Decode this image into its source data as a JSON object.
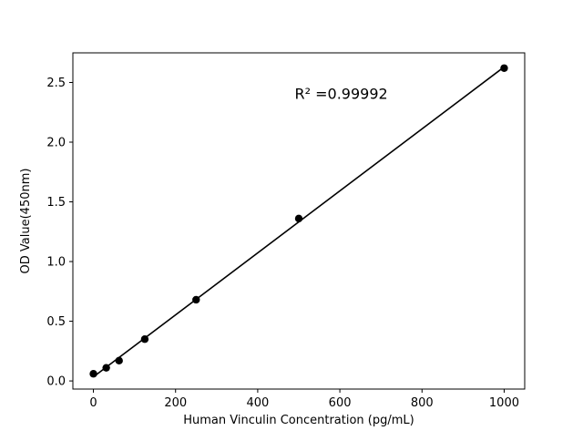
{
  "chart_data": {
    "type": "scatter",
    "title": "",
    "xlabel": "Human Vinculin Concentration (pg/mL)",
    "ylabel": "OD Value(450nm)",
    "x": [
      0,
      31.25,
      62.5,
      125,
      250,
      500,
      1000
    ],
    "y": [
      0.06,
      0.11,
      0.17,
      0.35,
      0.68,
      1.36,
      2.62
    ],
    "fit_line": {
      "x_start": 0,
      "x_end": 1000
    },
    "xlim": [
      -50,
      1050
    ],
    "ylim": [
      -0.068,
      2.748
    ],
    "xticks": [
      0,
      200,
      400,
      600,
      800,
      1000
    ],
    "yticks": [
      0.0,
      0.5,
      1.0,
      1.5,
      2.0,
      2.5
    ],
    "annotation": {
      "text": "R² =0.99992",
      "x": 490,
      "y": 2.4
    },
    "grid": false,
    "legend": null,
    "line_color": "#000000",
    "marker_color": "#000000",
    "background_color": "#ffffff"
  }
}
